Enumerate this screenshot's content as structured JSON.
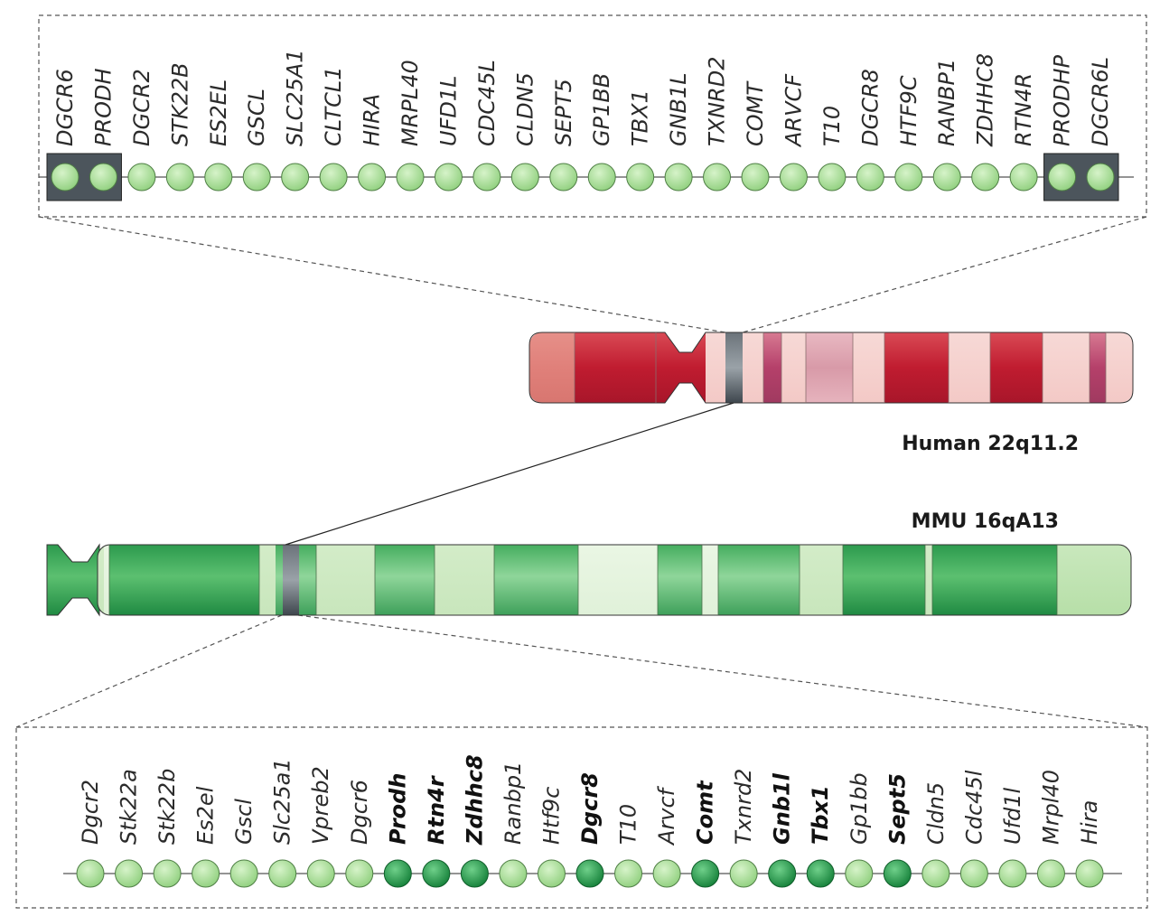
{
  "human_label": "Human 22q11.2",
  "mouse_label": "MMU 16qA13",
  "colors": {
    "light_gene": "#9ad98a",
    "dark_gene": "#1f9a45",
    "human_band_dark": "#c42a3a",
    "human_band_light": "#f5cfcc",
    "mouse_band_dark": "#2b9a50",
    "mouse_band_light": "#d8efd0",
    "lcr_box": "#4c555c"
  },
  "human_genes": [
    {
      "name": "DGCR6",
      "lcr": true
    },
    {
      "name": "PRODH",
      "lcr": true
    },
    {
      "name": "DGCR2"
    },
    {
      "name": "STK22B"
    },
    {
      "name": "ES2EL"
    },
    {
      "name": "GSCL"
    },
    {
      "name": "SLC25A1"
    },
    {
      "name": "CLTCL1"
    },
    {
      "name": "HIRA"
    },
    {
      "name": "MRPL40"
    },
    {
      "name": "UFD1L"
    },
    {
      "name": "CDC45L"
    },
    {
      "name": "CLDN5"
    },
    {
      "name": "SEPT5"
    },
    {
      "name": "GP1BB"
    },
    {
      "name": "TBX1"
    },
    {
      "name": "GNB1L"
    },
    {
      "name": "TXNRD2"
    },
    {
      "name": "COMT"
    },
    {
      "name": "ARVCF"
    },
    {
      "name": "T10"
    },
    {
      "name": "DGCR8"
    },
    {
      "name": "HTF9C"
    },
    {
      "name": "RANBP1"
    },
    {
      "name": "ZDHHC8"
    },
    {
      "name": "RTN4R"
    },
    {
      "name": "PRODHP",
      "lcr": true
    },
    {
      "name": "DGCR6L",
      "lcr": true
    }
  ],
  "mouse_genes": [
    {
      "name": "Dgcr2"
    },
    {
      "name": "Stk22a"
    },
    {
      "name": "Stk22b"
    },
    {
      "name": "Es2el"
    },
    {
      "name": "Gscl"
    },
    {
      "name": "Slc25a1"
    },
    {
      "name": "Vpreb2"
    },
    {
      "name": "Dgcr6"
    },
    {
      "name": "Prodh",
      "highlight": true
    },
    {
      "name": "Rtn4r",
      "highlight": true
    },
    {
      "name": "Zdhhc8",
      "highlight": true
    },
    {
      "name": "Ranbp1"
    },
    {
      "name": "Htf9c"
    },
    {
      "name": "Dgcr8",
      "highlight": true
    },
    {
      "name": "T10"
    },
    {
      "name": "Arvcf"
    },
    {
      "name": "Comt",
      "highlight": true
    },
    {
      "name": "Txnrd2"
    },
    {
      "name": "Gnb1l",
      "highlight": true
    },
    {
      "name": "Tbx1",
      "highlight": true
    },
    {
      "name": "Gp1bb"
    },
    {
      "name": "Sept5",
      "highlight": true
    },
    {
      "name": "Cldn5"
    },
    {
      "name": "Cdc45l"
    },
    {
      "name": "Ufd1l"
    },
    {
      "name": "Mrpl40"
    },
    {
      "name": "Hira"
    }
  ]
}
